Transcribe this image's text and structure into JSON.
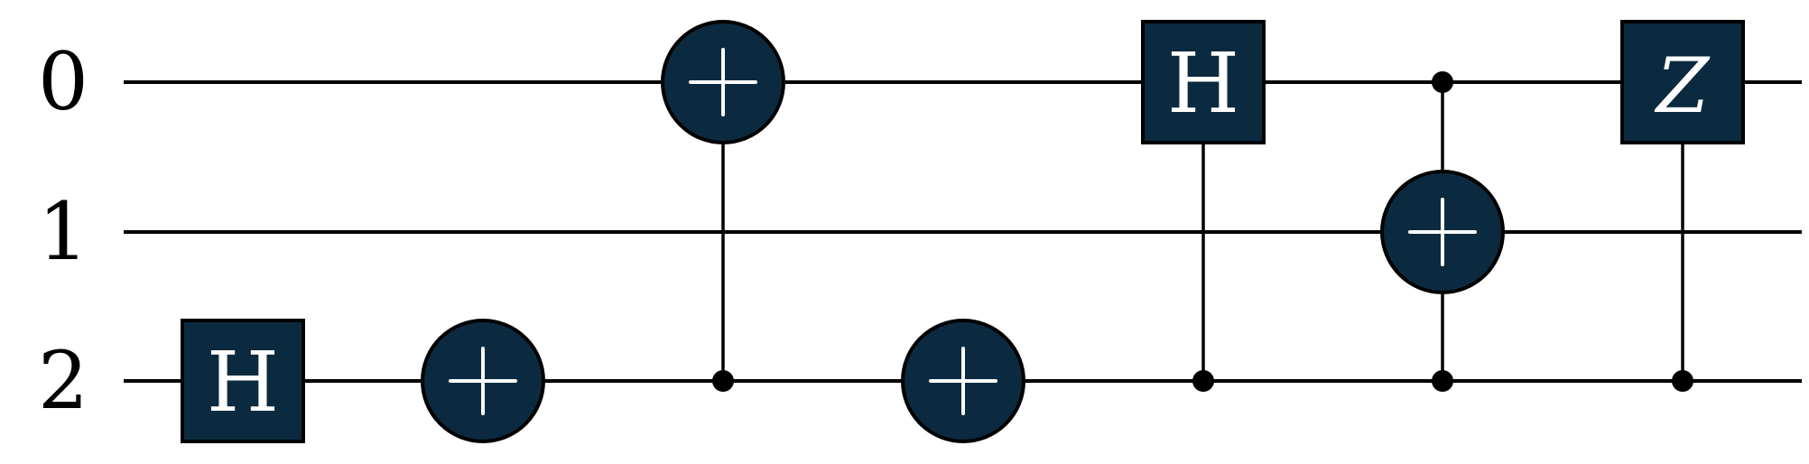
{
  "colors": {
    "gate_fill": "#0b2a3f",
    "line": "#000000",
    "gate_text": "#ffffff"
  },
  "qubits": [
    {
      "id": 0,
      "label": "0"
    },
    {
      "id": 1,
      "label": "1"
    },
    {
      "id": 2,
      "label": "2"
    }
  ],
  "gates": [
    {
      "type": "H",
      "label": "H",
      "target": 2,
      "column": 0
    },
    {
      "type": "X",
      "label": "",
      "target": 2,
      "column": 1
    },
    {
      "type": "CNOT",
      "label": "",
      "target": 0,
      "controls": [
        2
      ],
      "column": 2
    },
    {
      "type": "X",
      "label": "",
      "target": 2,
      "column": 3
    },
    {
      "type": "CH",
      "label": "H",
      "target": 0,
      "controls": [
        2
      ],
      "column": 4
    },
    {
      "type": "CCNOT",
      "label": "",
      "target": 1,
      "controls": [
        0,
        2
      ],
      "column": 5
    },
    {
      "type": "CZ",
      "label": "Z",
      "target": 0,
      "controls": [
        2
      ],
      "column": 6
    }
  ]
}
